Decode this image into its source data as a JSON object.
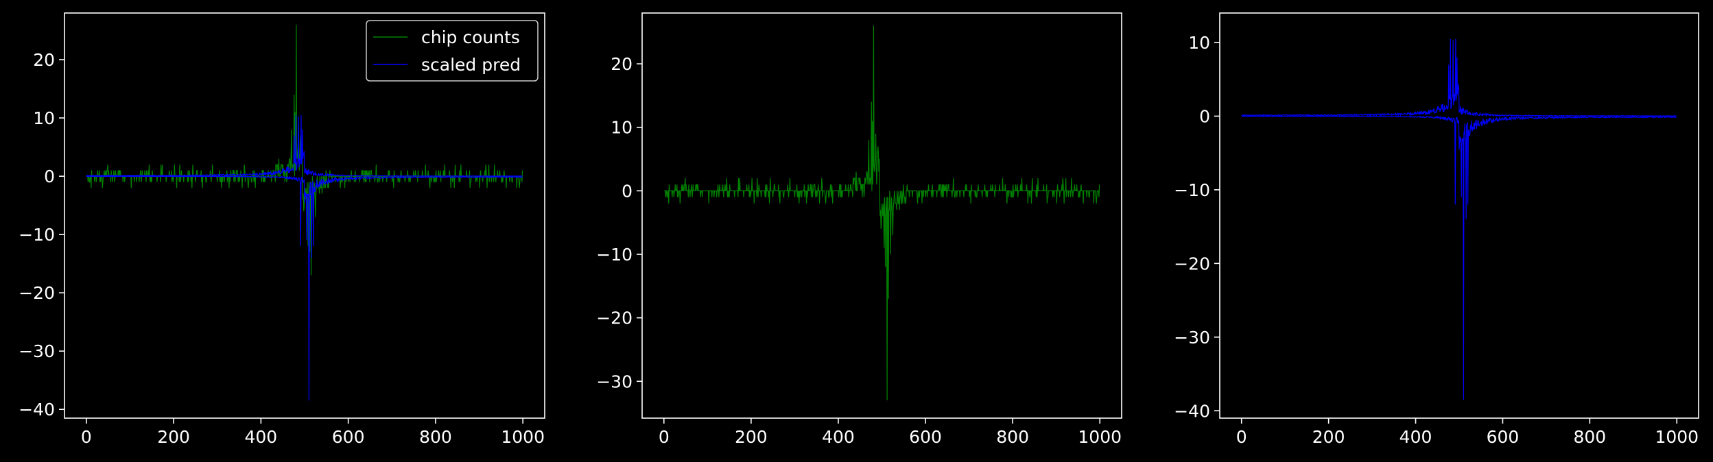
{
  "chart_data": [
    {
      "type": "line",
      "title": "",
      "xlabel": "",
      "ylabel": "",
      "xlim": [
        -50,
        1050
      ],
      "ylim": [
        -41.5,
        28
      ],
      "xticks": [
        0,
        200,
        400,
        600,
        800,
        1000
      ],
      "yticks": [
        -40,
        -30,
        -20,
        -10,
        0,
        10,
        20
      ],
      "xtick_labels": [
        "0",
        "200",
        "400",
        "600",
        "800",
        "1000"
      ],
      "ytick_labels": [
        "−40",
        "−30",
        "−20",
        "−10",
        "0",
        "10",
        "20"
      ],
      "legend": {
        "position": "top-right",
        "entries": [
          "chip counts",
          "scaled pred"
        ]
      },
      "series": [
        {
          "name": "chip counts",
          "color": "#008000",
          "key": "counts"
        },
        {
          "name": "scaled pred",
          "color": "#0000ff",
          "key": "pred"
        }
      ]
    },
    {
      "type": "line",
      "title": "",
      "xlabel": "",
      "ylabel": "",
      "xlim": [
        -50,
        1050
      ],
      "ylim": [
        -35.8,
        28
      ],
      "xticks": [
        0,
        200,
        400,
        600,
        800,
        1000
      ],
      "yticks": [
        -30,
        -20,
        -10,
        0,
        10,
        20
      ],
      "xtick_labels": [
        "0",
        "200",
        "400",
        "600",
        "800",
        "1000"
      ],
      "ytick_labels": [
        "−30",
        "−20",
        "−10",
        "0",
        "10",
        "20"
      ],
      "series": [
        {
          "color": "#008000",
          "key": "counts"
        }
      ]
    },
    {
      "type": "line",
      "title": "",
      "xlabel": "",
      "ylabel": "",
      "xlim": [
        -50,
        1050
      ],
      "ylim": [
        -41,
        14
      ],
      "xticks": [
        0,
        200,
        400,
        600,
        800,
        1000
      ],
      "yticks": [
        -40,
        -30,
        -20,
        -10,
        0,
        10
      ],
      "xtick_labels": [
        "0",
        "200",
        "400",
        "600",
        "800",
        "1000"
      ],
      "ytick_labels": [
        "−40",
        "−30",
        "−20",
        "−10",
        "0",
        "10"
      ],
      "series": [
        {
          "color": "#0000ff",
          "key": "pred"
        }
      ]
    }
  ],
  "signal_summary": {
    "n_points": 1000,
    "x_range": [
      0,
      999
    ],
    "counts_peak": {
      "x": 481,
      "y": 26
    },
    "counts_trough_left_panel": {
      "x": 515,
      "y": -17
    },
    "counts_trough_middle_panel": {
      "x": 511,
      "y": -33
    },
    "pred_peak": {
      "x": 492,
      "y": 10.5
    },
    "pred_trough": {
      "x": 510,
      "y": -38.5
    }
  }
}
